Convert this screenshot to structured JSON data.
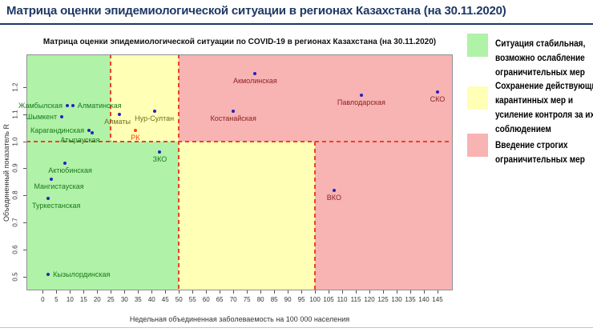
{
  "header": {
    "title": "Матрица оценки эпидемиологической ситуации в регионах Казахстана (на 30.11.2020)"
  },
  "chart_data": {
    "type": "scatter",
    "title": "Матрица оценки эпидемиологической ситуации по COVID-19 в регионах Казахстана (на 30.11.2020)",
    "xlabel": "Недельная объединенная заболеваемость на 100 000 населения",
    "ylabel": "Объединенный показатель R",
    "xlim": [
      -6,
      150.6
    ],
    "ylim": [
      0.45,
      1.32
    ],
    "x_ticks": [
      0,
      5,
      10,
      15,
      20,
      25,
      30,
      35,
      40,
      45,
      50,
      55,
      60,
      65,
      70,
      75,
      80,
      85,
      90,
      95,
      100,
      105,
      110,
      115,
      120,
      125,
      130,
      135,
      140,
      145
    ],
    "y_ticks": [
      0.5,
      0.6,
      0.7,
      0.8,
      0.9,
      1.0,
      1.1,
      1.2
    ],
    "grid": false,
    "thresholds": {
      "r_line": 1.0,
      "incidence_bounds_above_r1": [
        25,
        50
      ],
      "incidence_bounds_below_r1": [
        50,
        100
      ]
    },
    "zones": [
      {
        "name": "green-top",
        "color": "#b0f2a8",
        "x": [
          -6,
          25
        ],
        "y": [
          1.0,
          1.32
        ]
      },
      {
        "name": "yellow-top",
        "color": "#ffffb6",
        "x": [
          25,
          50
        ],
        "y": [
          1.0,
          1.32
        ]
      },
      {
        "name": "red-top",
        "color": "#f8b3b3",
        "x": [
          50,
          150.6
        ],
        "y": [
          1.0,
          1.32
        ]
      },
      {
        "name": "green-bottom",
        "color": "#b0f2a8",
        "x": [
          -6,
          50
        ],
        "y": [
          0.45,
          1.0
        ]
      },
      {
        "name": "yellow-bottom",
        "color": "#ffffb6",
        "x": [
          50,
          100
        ],
        "y": [
          0.45,
          1.0
        ]
      },
      {
        "name": "red-bottom",
        "color": "#f8b3b3",
        "x": [
          100,
          150.6
        ],
        "y": [
          0.45,
          1.0
        ]
      }
    ],
    "boundary_lines": [
      {
        "type": "h",
        "y": 1.0,
        "x": [
          -6,
          150.6
        ]
      },
      {
        "type": "v",
        "x": 25,
        "y": [
          1.0,
          1.32
        ]
      },
      {
        "type": "v",
        "x": 50,
        "y": [
          0.45,
          1.32
        ]
      },
      {
        "type": "v",
        "x": 100,
        "y": [
          0.45,
          1.0
        ]
      }
    ],
    "points": [
      {
        "name": "Жамбылская",
        "x": 9,
        "y": 1.13,
        "zone": "green",
        "label": "left"
      },
      {
        "name": "Алматинская",
        "x": 11,
        "y": 1.13,
        "zone": "green",
        "label": "right"
      },
      {
        "name": "Шымкент",
        "x": 7,
        "y": 1.09,
        "zone": "green",
        "label": "left"
      },
      {
        "name": "Карагандинская",
        "x": 17,
        "y": 1.04,
        "zone": "green",
        "label": "left"
      },
      {
        "name": "Атырауская",
        "x": 18,
        "y": 1.03,
        "zone": "green",
        "label": "left",
        "ox": 16,
        "oy": 9
      },
      {
        "name": "Актюбинская",
        "x": 8,
        "y": 0.92,
        "zone": "green",
        "label": "bottom",
        "ox": 7
      },
      {
        "name": "Мангистауская",
        "x": 3,
        "y": 0.86,
        "zone": "green",
        "label": "bottom",
        "ox": 10
      },
      {
        "name": "Туркестанская",
        "x": 2,
        "y": 0.79,
        "zone": "green",
        "label": "bottom",
        "ox": 10
      },
      {
        "name": "Кызылординская",
        "x": 2,
        "y": 0.51,
        "zone": "green",
        "label": "right"
      },
      {
        "name": "ЗКО",
        "x": 43,
        "y": 0.96,
        "zone": "green",
        "label": "bottom"
      },
      {
        "name": "Алматы",
        "x": 28,
        "y": 1.1,
        "zone": "yellow",
        "label": "bottom",
        "ox": -2
      },
      {
        "name": "Нур-Султан",
        "x": 41,
        "y": 1.11,
        "zone": "yellow",
        "label": "bottom"
      },
      {
        "name": "РК",
        "x": 34,
        "y": 1.04,
        "zone": "rk",
        "label": "bottom",
        "color": "#ff4500"
      },
      {
        "name": "Акмолинская",
        "x": 78,
        "y": 1.25,
        "zone": "red",
        "label": "bottom"
      },
      {
        "name": "Костанайская",
        "x": 70,
        "y": 1.11,
        "zone": "red",
        "label": "bottom"
      },
      {
        "name": "Павлодарская",
        "x": 117,
        "y": 1.17,
        "zone": "red",
        "label": "bottom"
      },
      {
        "name": "СКО",
        "x": 145,
        "y": 1.18,
        "zone": "red",
        "label": "bottom"
      },
      {
        "name": "ВКО",
        "x": 107,
        "y": 0.82,
        "zone": "red",
        "label": "bottom"
      }
    ],
    "colors": {
      "dot": "#2323bb",
      "threshold": "#ee4125",
      "labels": {
        "green": "#1a7a1a",
        "yellow": "#6f6f1f",
        "red": "#8b1f1f",
        "rk": "#ff4500"
      }
    },
    "legend": {
      "items": [
        {
          "color": "#b0f2a8",
          "label": "Ситуация стабильная,\nвозможно ослабление\nограничительных мер"
        },
        {
          "color": "#ffffb6",
          "label": "Сохранение действующих\nкарантинных мер и\nусиление контроля за их\nсоблюдением"
        },
        {
          "color": "#f8b3b3",
          "label": "Введение строгих\nограничительных мер"
        }
      ]
    }
  }
}
